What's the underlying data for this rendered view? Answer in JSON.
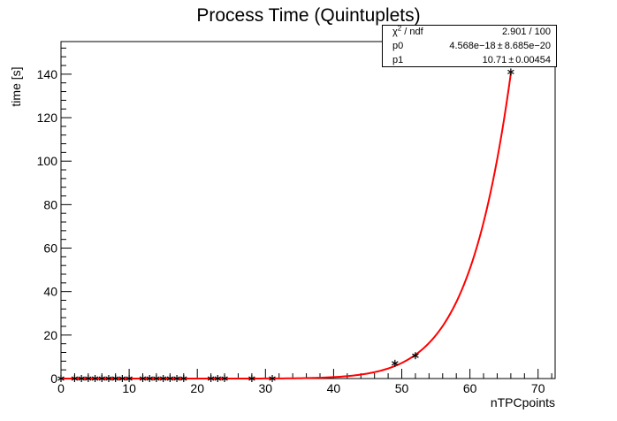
{
  "chart_data": {
    "type": "scatter",
    "title": "Process Time (Quintuplets)",
    "xlabel": "nTPCpoints",
    "ylabel": "time [s]",
    "xlim": [
      0,
      72.5
    ],
    "ylim": [
      0,
      155
    ],
    "xticks": [
      0,
      10,
      20,
      30,
      40,
      50,
      60,
      70
    ],
    "yticks": [
      0,
      20,
      40,
      60,
      80,
      100,
      120,
      140
    ],
    "series": [
      {
        "marker": "asterisk",
        "color": "#000000",
        "points": [
          [
            0,
            0.0
          ],
          [
            2,
            0.0
          ],
          [
            3,
            0.0
          ],
          [
            4,
            0.0
          ],
          [
            5,
            0.0
          ],
          [
            6,
            0.0
          ],
          [
            7,
            0.0
          ],
          [
            8,
            0.0
          ],
          [
            9,
            0.0
          ],
          [
            10,
            0.0
          ],
          [
            12,
            0.0
          ],
          [
            13,
            0.0
          ],
          [
            14,
            0.0
          ],
          [
            15,
            0.0
          ],
          [
            16,
            0.0
          ],
          [
            17,
            0.0
          ],
          [
            18,
            0.0
          ],
          [
            22,
            0.0
          ],
          [
            23,
            0.0
          ],
          [
            24,
            0.0
          ],
          [
            28,
            0.0
          ],
          [
            31,
            0.0
          ],
          [
            49,
            7.0
          ],
          [
            52,
            10.5
          ],
          [
            66,
            141.0
          ]
        ]
      }
    ],
    "fit": {
      "function": "expo",
      "color": "#ff0000",
      "p0": 4.568e-18,
      "p1": 10.71,
      "xrange": [
        0,
        66
      ]
    },
    "stats": {
      "rows": [
        {
          "key_main": "χ",
          "key_sup": "2",
          "key_tail": " / ndf",
          "value": "2.901 / 100",
          "error": ""
        },
        {
          "key_main": "p0",
          "key_sup": "",
          "key_tail": "",
          "value": "4.568e−18",
          "error": "8.685e−20"
        },
        {
          "key_main": "p1",
          "key_sup": "",
          "key_tail": "",
          "value": "10.71",
          "error": "0.00454"
        }
      ],
      "pm_symbol": "±"
    }
  }
}
